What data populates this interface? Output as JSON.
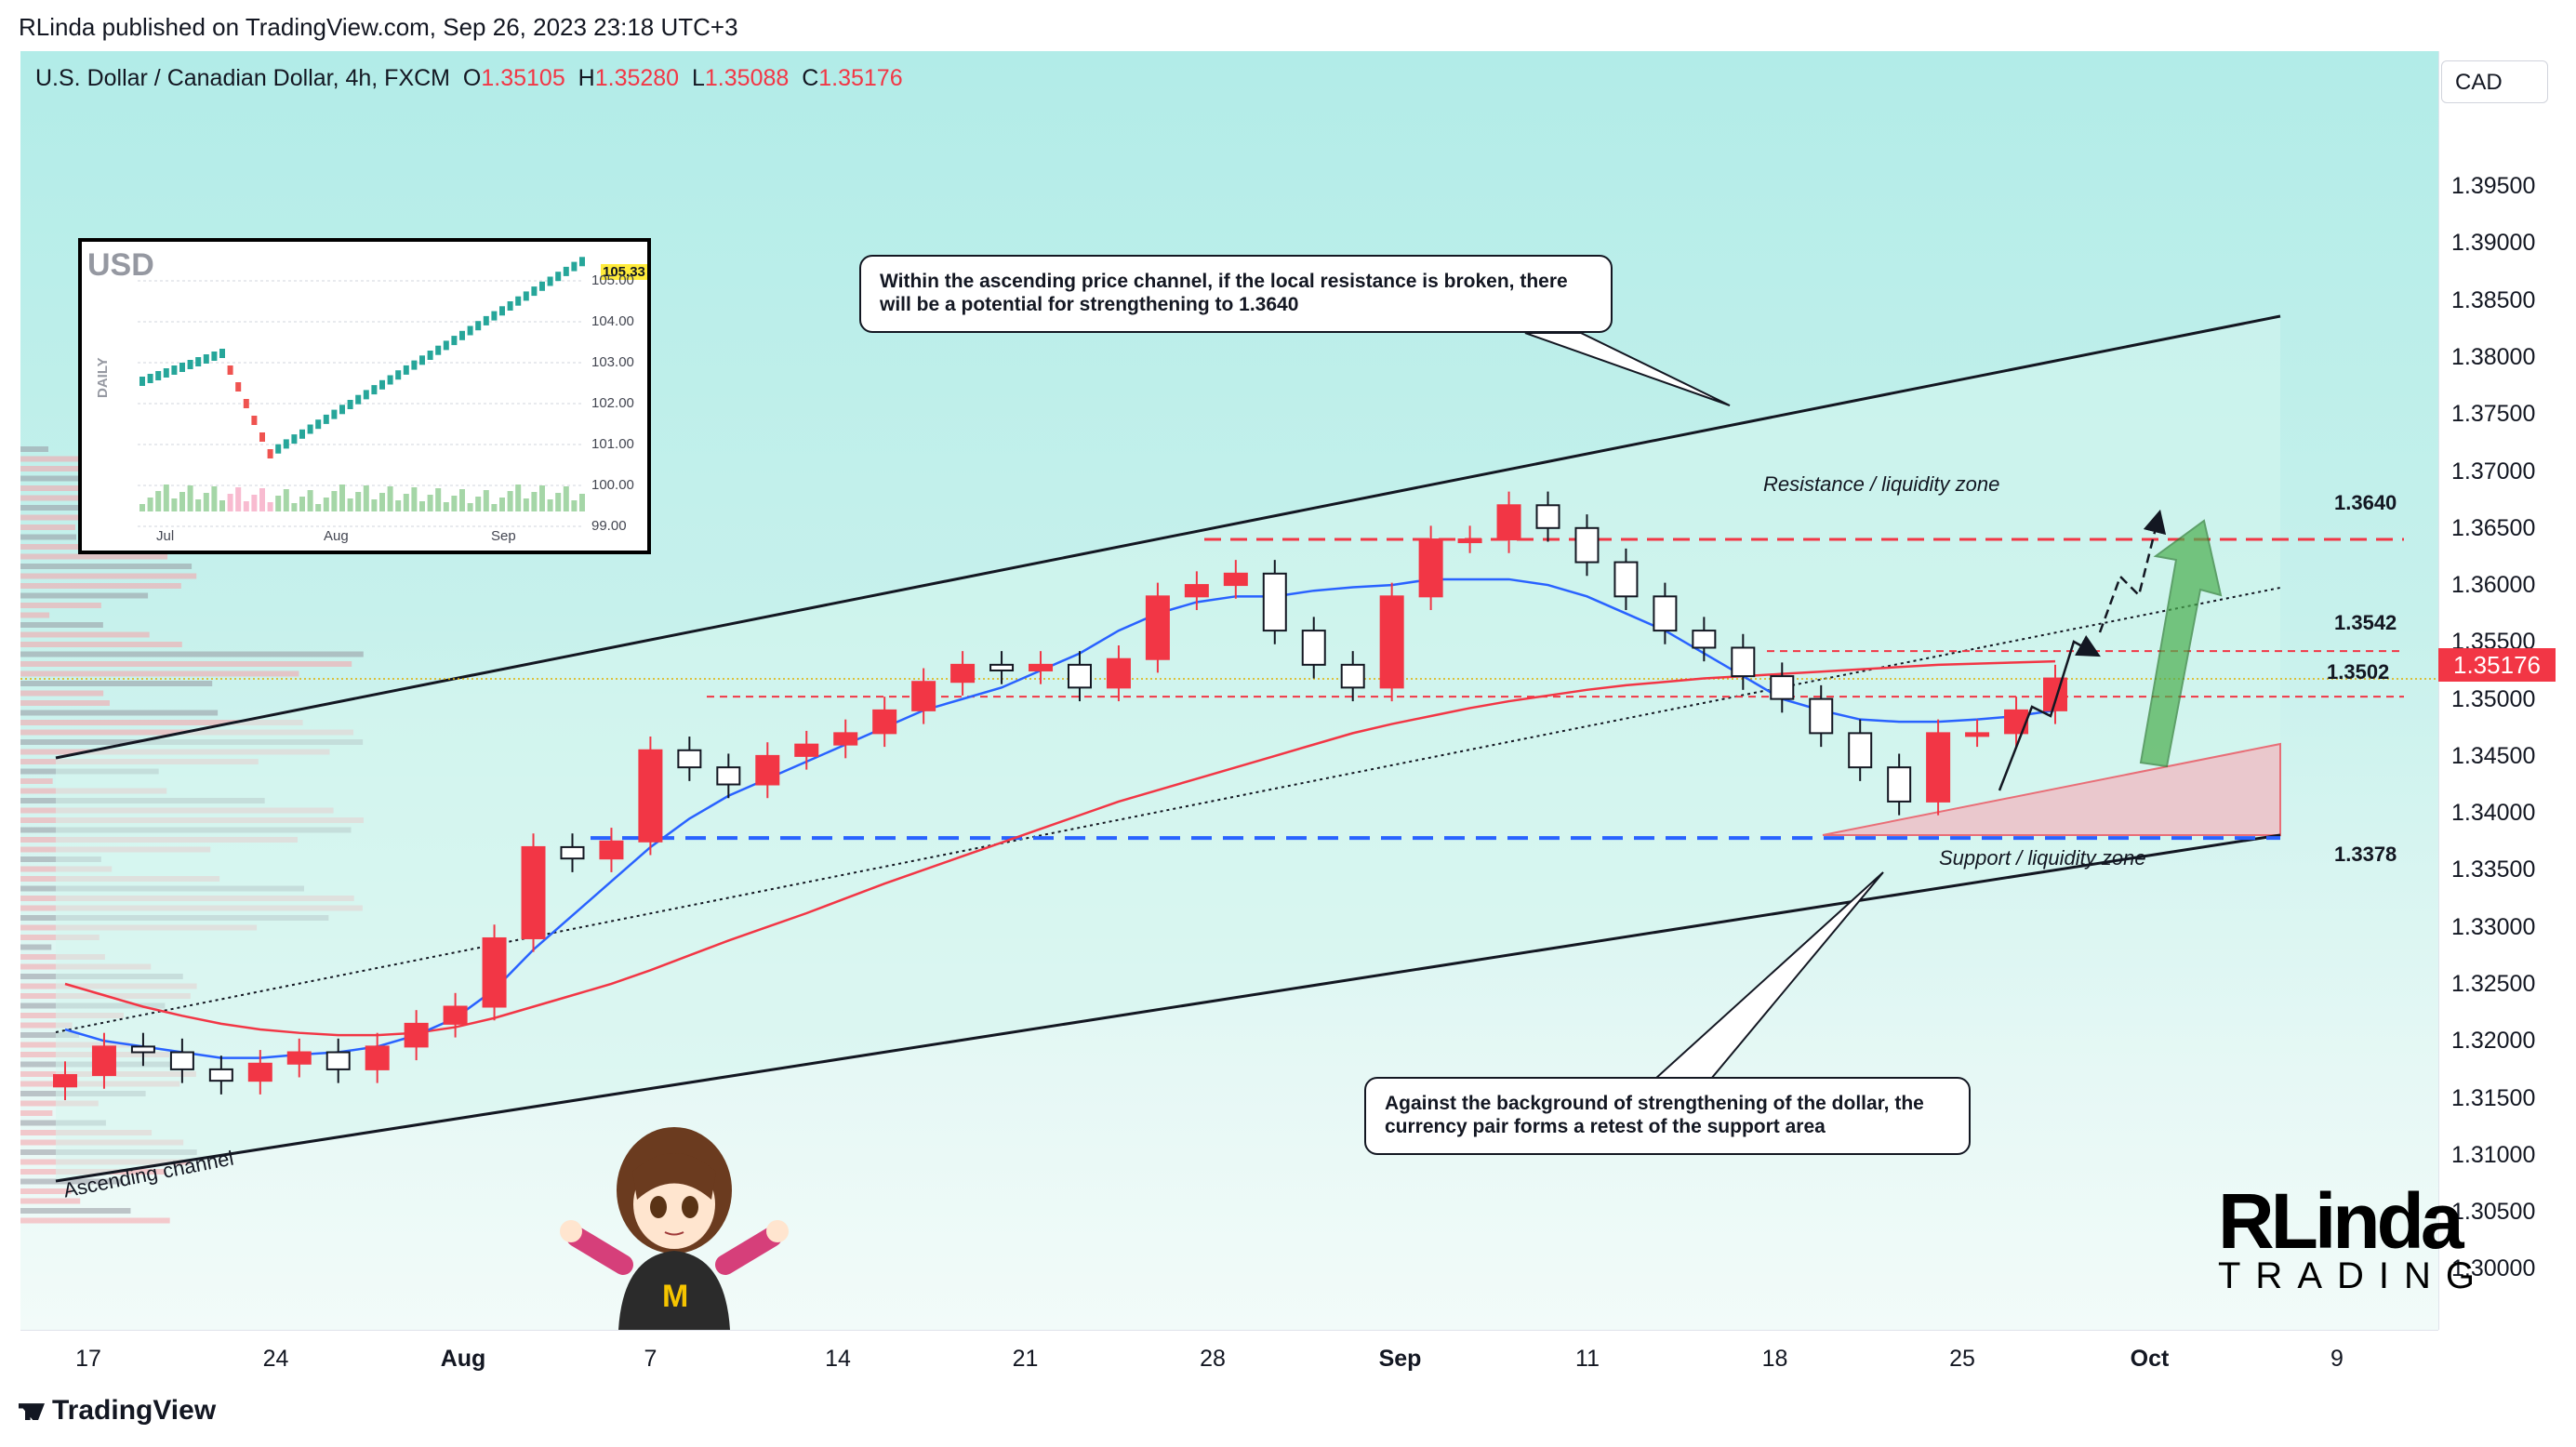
{
  "publisher": "RLinda published on TradingView.com, Sep 26, 2023 23:18 UTC+3",
  "legend": {
    "symbol": "U.S. Dollar / Canadian Dollar, 4h, FXCM",
    "o_label": "O",
    "o": "1.35105",
    "h_label": "H",
    "h": "1.35280",
    "l_label": "L",
    "l": "1.35088",
    "c_label": "C",
    "c": "1.35176"
  },
  "currency": "CAD",
  "price_ticks": [
    "1.39500",
    "1.39000",
    "1.38500",
    "1.38000",
    "1.37500",
    "1.37000",
    "1.36500",
    "1.36000",
    "1.35500",
    "1.35000",
    "1.34500",
    "1.34000",
    "1.33500",
    "1.33000",
    "1.32500",
    "1.32000",
    "1.31500",
    "1.31000",
    "1.30500",
    "1.30000"
  ],
  "time_ticks": [
    {
      "label": "17",
      "bold": false
    },
    {
      "label": "24",
      "bold": false
    },
    {
      "label": "Aug",
      "bold": true
    },
    {
      "label": "7",
      "bold": false
    },
    {
      "label": "14",
      "bold": false
    },
    {
      "label": "21",
      "bold": false
    },
    {
      "label": "28",
      "bold": false
    },
    {
      "label": "Sep",
      "bold": true
    },
    {
      "label": "11",
      "bold": false
    },
    {
      "label": "18",
      "bold": false
    },
    {
      "label": "25",
      "bold": false
    },
    {
      "label": "Oct",
      "bold": true
    },
    {
      "label": "9",
      "bold": false
    }
  ],
  "current_price": "1.35176",
  "levels": [
    "1.3640",
    "1.3542",
    "1.3502",
    "1.3378"
  ],
  "callout_top": "Within the ascending price channel, if the local resistance is broken, there will be a potential for strengthening to 1.3640",
  "callout_bottom": "Against the background of strengthening of the dollar, the currency pair forms a retest of the support area",
  "zone_resistance": "Resistance / liquidity zone",
  "zone_support": "Support / liquidity zone",
  "channel_label": "Ascending channel",
  "inset": {
    "title": "USD",
    "side_label": "DAILY",
    "price_label": "105.33",
    "y_ticks": [
      "105.00",
      "104.00",
      "103.00",
      "102.00",
      "101.00",
      "100.00",
      "99.00"
    ],
    "x_ticks": [
      "Jul",
      "Aug",
      "Sep"
    ]
  },
  "logo": {
    "line1": "RLinda",
    "line2": "TRADING"
  },
  "footer": "TradingView",
  "colors": {
    "bull": "#f23645",
    "bear": "#131722",
    "ma_blue": "#2962ff",
    "ma_red": "#f23645",
    "resistance": "#f23645",
    "support": "#2962ff",
    "arrow": "#4caf50"
  },
  "chart_data": {
    "type": "candlestick",
    "ylim": [
      1.2975,
      1.3995
    ],
    "x": [
      "Jul 17",
      "Jul 18",
      "Jul 19",
      "Jul 20",
      "Jul 21",
      "Jul 24",
      "Jul 25",
      "Jul 26",
      "Jul 27",
      "Jul 28",
      "Jul 31",
      "Aug 1",
      "Aug 2",
      "Aug 3",
      "Aug 4",
      "Aug 7",
      "Aug 8",
      "Aug 9",
      "Aug 10",
      "Aug 11",
      "Aug 14",
      "Aug 15",
      "Aug 16",
      "Aug 17",
      "Aug 18",
      "Aug 21",
      "Aug 22",
      "Aug 23",
      "Aug 24",
      "Aug 25",
      "Aug 28",
      "Aug 29",
      "Aug 30",
      "Aug 31",
      "Sep 1",
      "Sep 4",
      "Sep 5",
      "Sep 6",
      "Sep 7",
      "Sep 8",
      "Sep 11",
      "Sep 12",
      "Sep 13",
      "Sep 14",
      "Sep 15",
      "Sep 18",
      "Sep 19",
      "Sep 20",
      "Sep 21",
      "Sep 22",
      "Sep 25",
      "Sep 26"
    ],
    "close": [
      1.317,
      1.3195,
      1.319,
      1.3175,
      1.3165,
      1.318,
      1.319,
      1.3175,
      1.3195,
      1.3215,
      1.323,
      1.329,
      1.337,
      1.336,
      1.3375,
      1.3455,
      1.344,
      1.3425,
      1.345,
      1.346,
      1.347,
      1.349,
      1.3515,
      1.353,
      1.3525,
      1.353,
      1.351,
      1.3535,
      1.359,
      1.36,
      1.361,
      1.356,
      1.353,
      1.351,
      1.359,
      1.364,
      1.364,
      1.367,
      1.365,
      1.362,
      1.359,
      1.356,
      1.3545,
      1.352,
      1.35,
      1.347,
      1.344,
      1.341,
      1.347,
      1.347,
      1.349,
      1.3518
    ],
    "ma_blue": [
      1.321,
      1.32,
      1.3195,
      1.319,
      1.3185,
      1.3185,
      1.3188,
      1.319,
      1.3195,
      1.3205,
      1.322,
      1.3245,
      1.328,
      1.331,
      1.334,
      1.337,
      1.3395,
      1.3415,
      1.343,
      1.3445,
      1.346,
      1.3475,
      1.349,
      1.35,
      1.351,
      1.3525,
      1.354,
      1.356,
      1.3575,
      1.3585,
      1.359,
      1.359,
      1.3595,
      1.3598,
      1.36,
      1.3605,
      1.3605,
      1.3605,
      1.36,
      1.359,
      1.3575,
      1.356,
      1.354,
      1.352,
      1.35,
      1.349,
      1.3482,
      1.348,
      1.348,
      1.3482,
      1.3485,
      1.349
    ],
    "ma_red": [
      1.325,
      1.324,
      1.323,
      1.3222,
      1.3215,
      1.321,
      1.3207,
      1.3205,
      1.3205,
      1.3207,
      1.3212,
      1.322,
      1.323,
      1.324,
      1.325,
      1.3262,
      1.3275,
      1.3288,
      1.33,
      1.3312,
      1.3325,
      1.3338,
      1.335,
      1.3362,
      1.3374,
      1.3386,
      1.3398,
      1.341,
      1.342,
      1.343,
      1.344,
      1.345,
      1.346,
      1.347,
      1.3478,
      1.3485,
      1.3492,
      1.3498,
      1.3503,
      1.3508,
      1.3512,
      1.3515,
      1.3518,
      1.352,
      1.3522,
      1.3524,
      1.3526,
      1.3528,
      1.353,
      1.3531,
      1.3532,
      1.3533
    ]
  }
}
